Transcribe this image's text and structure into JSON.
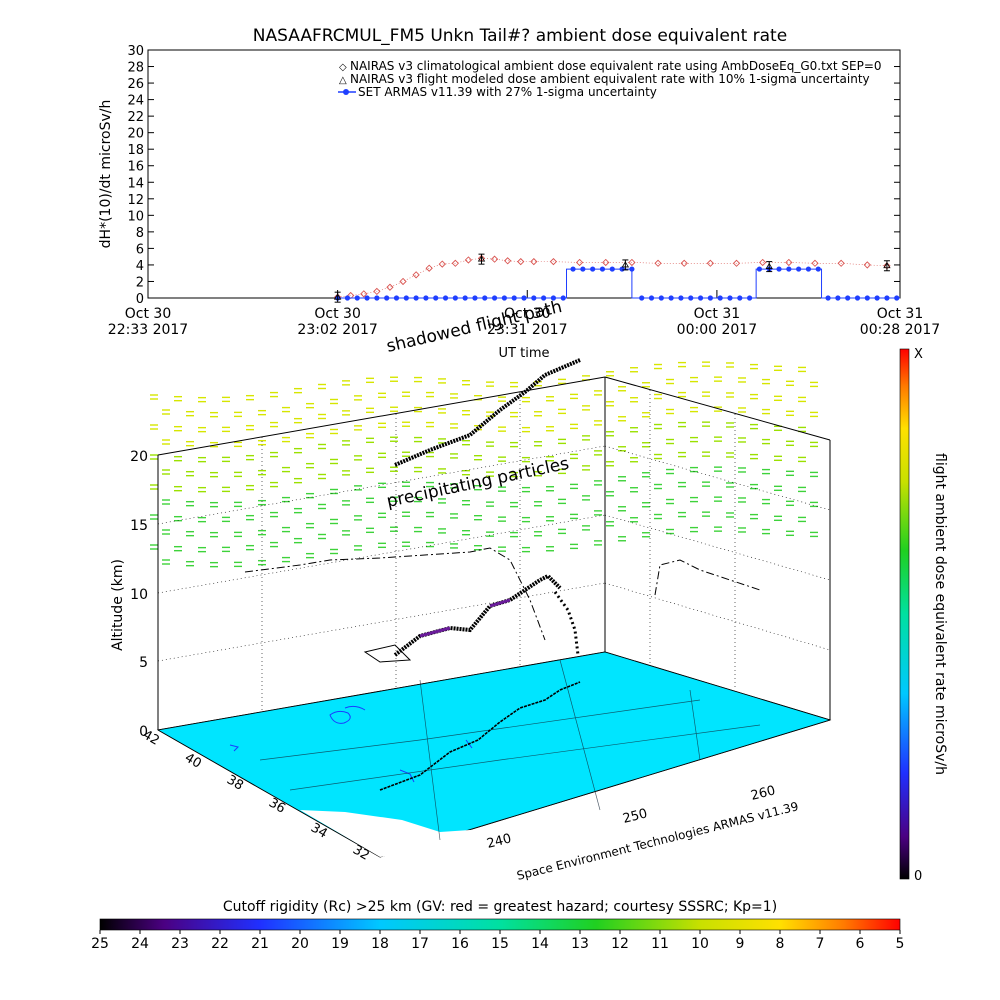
{
  "title": "NASAAFRCMUL_FM5 Unkn Tail#? ambient dose equivalent rate",
  "top_chart": {
    "ylabel": "dH*(10)/dt microSv/h",
    "xlabel": "UT time",
    "y_ticks": [
      "0",
      "2",
      "4",
      "6",
      "8",
      "10",
      "12",
      "14",
      "16",
      "18",
      "20",
      "22",
      "24",
      "26",
      "28",
      "30"
    ],
    "x_ticks": [
      {
        "line1": "Oct 30",
        "line2": "22:33 2017"
      },
      {
        "line1": "Oct 30",
        "line2": "23:02 2017"
      },
      {
        "line1": "Oct 30",
        "line2": "23:31 2017"
      },
      {
        "line1": "Oct 31",
        "line2": "00:00 2017"
      },
      {
        "line1": "Oct 31",
        "line2": "00:28 2017"
      }
    ],
    "legend": [
      "NAIRAS v3 climatological ambient dose equivalent rate using AmbDoseEq_G0.txt SEP=0",
      "NAIRAS v3 flight modeled dose ambient equivalent rate with 10% 1-sigma uncertainty",
      "SET ARMAS v11.39 with 27% 1-sigma uncertainty"
    ],
    "colors": {
      "nairas_clim": "#d9534f",
      "nairas_flight": "#000000",
      "armas": "#1f3fff"
    }
  },
  "chart_data": [
    {
      "type": "line",
      "title": "NASAAFRCMUL_FM5 Unkn Tail#? ambient dose equivalent rate",
      "xlabel": "UT time",
      "ylabel": "dH*(10)/dt microSv/h",
      "ylim": [
        0,
        30
      ],
      "x_unit": "minutes after Oct 30 22:33 UT",
      "xlim": [
        0,
        115
      ],
      "series": [
        {
          "name": "NAIRAS v3 climatological ambient dose equivalent rate using AmbDoseEq_G0.txt SEP=0",
          "x": [
            29,
            31,
            33,
            35,
            37,
            39,
            41,
            43,
            45,
            47,
            49,
            51,
            53,
            55,
            57,
            59,
            62,
            66,
            70,
            74,
            78,
            82,
            86,
            90,
            94,
            98,
            102,
            106,
            110,
            113
          ],
          "y": [
            0.1,
            0.3,
            0.5,
            0.8,
            1.3,
            2.0,
            2.8,
            3.6,
            4.1,
            4.2,
            4.6,
            4.8,
            4.7,
            4.5,
            4.4,
            4.4,
            4.4,
            4.3,
            4.3,
            4.3,
            4.2,
            4.2,
            4.2,
            4.2,
            4.3,
            4.3,
            4.2,
            4.2,
            4.0,
            3.9
          ]
        },
        {
          "name": "NAIRAS v3 flight modeled dose ambient equivalent rate with 10% 1-sigma uncertainty",
          "x": [
            29,
            51,
            73,
            95,
            113
          ],
          "y": [
            0.1,
            4.7,
            4.0,
            3.8,
            3.9
          ]
        },
        {
          "name": "SET ARMAS v11.39 with 27% 1-sigma uncertainty",
          "x": [
            29,
            33,
            37,
            41,
            45,
            49,
            53,
            57,
            61,
            64,
            64,
            66,
            68,
            70,
            72,
            74,
            74,
            78,
            82,
            86,
            90,
            93,
            93,
            95,
            97,
            99,
            101,
            103,
            103,
            107,
            111,
            115
          ],
          "y": [
            0,
            0,
            0,
            0,
            0,
            0,
            0,
            0,
            0,
            0,
            3.5,
            3.5,
            3.5,
            3.5,
            3.5,
            3.5,
            0,
            0,
            0,
            0,
            0,
            0,
            3.5,
            3.5,
            3.5,
            3.5,
            3.5,
            3.5,
            0,
            0,
            0,
            0
          ]
        }
      ]
    },
    {
      "type": "scatter",
      "title": "",
      "zlabel": "Altitude (km)",
      "zlim": [
        0,
        20
      ],
      "z_ticks": [
        "0",
        "5",
        "10",
        "15",
        "20"
      ],
      "lat_ticks": [
        "32",
        "34",
        "36",
        "38",
        "40",
        "42"
      ],
      "lon_ticks": [
        "240",
        "250",
        "260"
      ],
      "series": [
        {
          "name": "flight path",
          "lon": [
            244,
            245,
            246,
            247,
            248,
            249,
            250,
            251,
            252,
            253,
            254
          ],
          "lat": [
            34.0,
            34.6,
            35.3,
            36.0,
            36.6,
            37.2,
            37.6,
            38.0,
            38.4,
            38.8,
            39.2
          ],
          "alt_km": [
            5.2,
            6.0,
            7.0,
            7.5,
            8.1,
            9.0,
            9.6,
            10.4,
            11.0,
            11.2,
            11.0
          ]
        }
      ]
    }
  ],
  "annotations": {
    "shadowed": "shadowed flight path",
    "precip": "precipitating particles",
    "credit": "Space Environment Technologies ARMAS v11.39"
  },
  "right_colorbar": {
    "label": "flight ambient dose equivalent rate microSv/h",
    "top": "X",
    "bottom": "0"
  },
  "bottom_colorbar": {
    "title": "Cutoff rigidity (Rc) >25 km (GV: red = greatest hazard; courtesy SSSRC; Kp=1)",
    "ticks": [
      "25",
      "24",
      "23",
      "22",
      "21",
      "20",
      "19",
      "18",
      "17",
      "16",
      "15",
      "14",
      "13",
      "12",
      "11",
      "10",
      "9",
      "8",
      "7",
      "6",
      "5"
    ]
  }
}
